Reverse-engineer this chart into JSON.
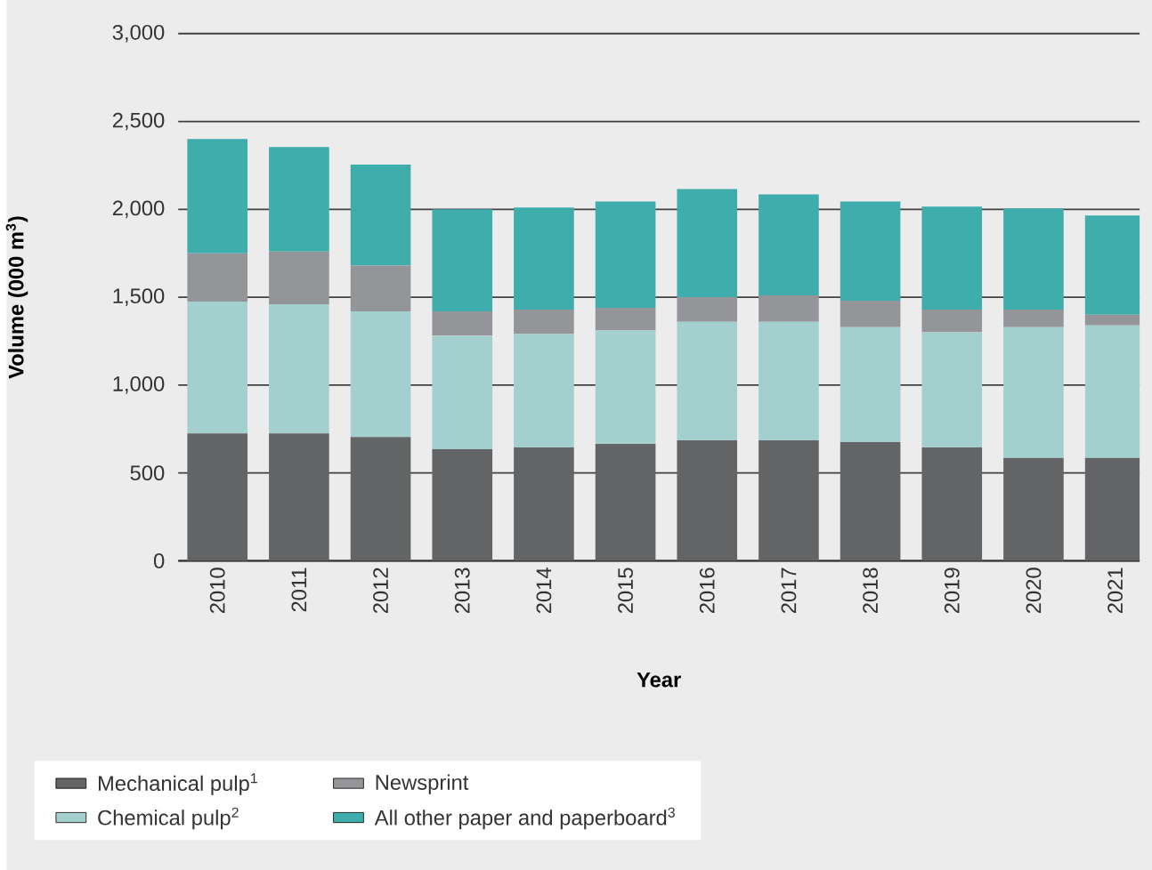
{
  "chart_data": {
    "type": "bar",
    "stacked": true,
    "xlabel": "Year",
    "ylabel": "Volume (000 m$^{3}$)",
    "categories": [
      "2010",
      "2011",
      "2012",
      "2013",
      "2014",
      "2015",
      "2016",
      "2017",
      "2018",
      "2019",
      "2020",
      "2021"
    ],
    "series": [
      {
        "name": "Mechanical pulp$^{1}$",
        "color": "#636466",
        "values": [
          725,
          725,
          705,
          635,
          645,
          665,
          685,
          685,
          675,
          645,
          585,
          585
        ]
      },
      {
        "name": "Chemical pulp$^{2}$",
        "color": "#a3d0cf",
        "values": [
          750,
          735,
          715,
          645,
          645,
          645,
          675,
          675,
          655,
          655,
          745,
          755
        ]
      },
      {
        "name": "Newsprint",
        "color": "#939598",
        "values": [
          275,
          300,
          260,
          140,
          140,
          130,
          140,
          150,
          150,
          130,
          100,
          60
        ]
      },
      {
        "name": "All other paper and paperboard$^{3}$",
        "color": "#40adad",
        "values": [
          650,
          595,
          575,
          580,
          580,
          605,
          615,
          575,
          565,
          585,
          575,
          565
        ]
      }
    ],
    "ylim": [
      0,
      3000
    ],
    "yticks": [
      0,
      500,
      {
        "value": 1000,
        "label": "1,000"
      },
      {
        "value": 1500,
        "label": "1,500"
      },
      {
        "value": 2000,
        "label": "2,000"
      },
      {
        "value": 2500,
        "label": "2,500"
      },
      {
        "value": 3000,
        "label": "3,000"
      }
    ],
    "grid": "y",
    "legend": "bottom"
  }
}
